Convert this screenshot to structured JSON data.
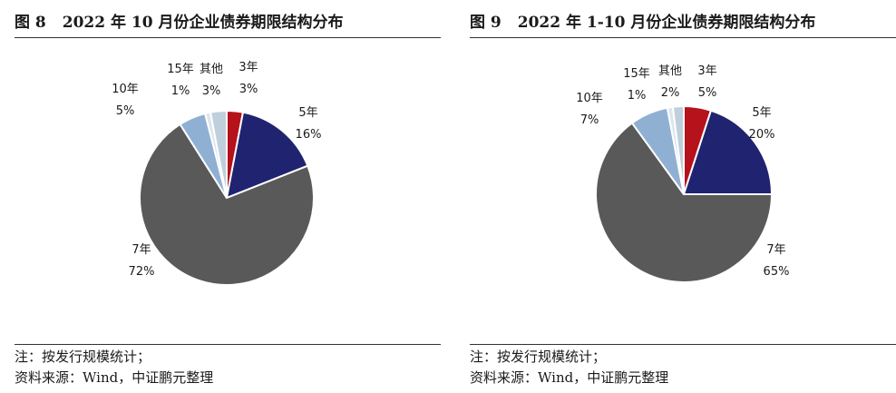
{
  "colors": {
    "3年": "#b5121b",
    "5年": "#1f2370",
    "7年": "#595959",
    "10年": "#8fb0d2",
    "15年": "#dce6f0",
    "其他": "#bfcfdc"
  },
  "panels": [
    {
      "fig_no": "图 8",
      "title": "2022 年 10 月份企业债券期限结构分布",
      "note": "注：按发行规模统计；",
      "source": "资料来源：Wind，中证鹏元整理"
    },
    {
      "fig_no": "图 9",
      "title": "2022 年 1-10 月份企业债券期限结构分布",
      "note": "注：按发行规模统计；",
      "source": "资料来源：Wind，中证鹏元整理"
    }
  ],
  "chart_data": [
    {
      "type": "pie",
      "title": "2022 年 10 月份企业债券期限结构分布",
      "labels": [
        "3年",
        "5年",
        "7年",
        "10年",
        "15年",
        "其他"
      ],
      "values": [
        3,
        16,
        72,
        5,
        1,
        3
      ],
      "value_labels": [
        "3%",
        "16%",
        "72%",
        "5%",
        "1%",
        "3%"
      ],
      "start": "12 o'clock",
      "direction": "clockwise"
    },
    {
      "type": "pie",
      "title": "2022 年 1-10 月份企业债券期限结构分布",
      "labels": [
        "3年",
        "5年",
        "7年",
        "10年",
        "15年",
        "其他"
      ],
      "values": [
        5,
        20,
        65,
        7,
        1,
        2
      ],
      "value_labels": [
        "5%",
        "20%",
        "65%",
        "7%",
        "1%",
        "2%"
      ],
      "start": "12 o'clock",
      "direction": "clockwise"
    }
  ]
}
